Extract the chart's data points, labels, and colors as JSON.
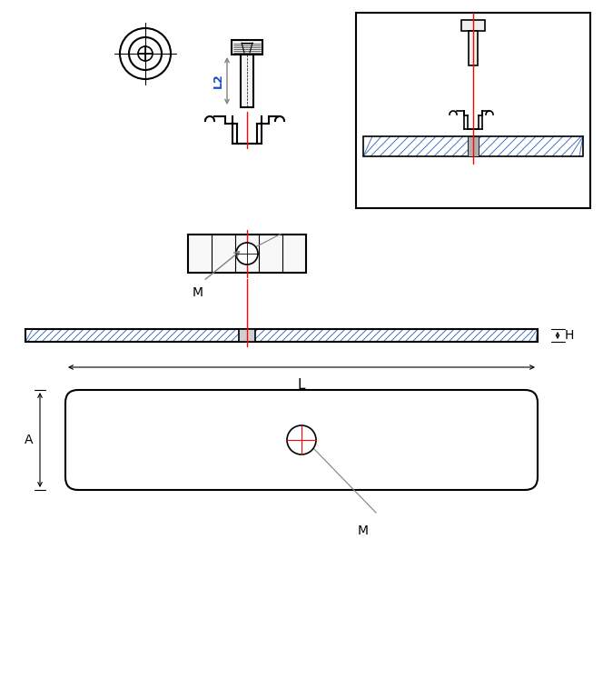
{
  "bg_color": "#ffffff",
  "line_color": "#000000",
  "red_line": "#ff0000",
  "blue_hatch_color": "#4472c4",
  "gray_color": "#808080",
  "label_L2": "L2",
  "label_L": "L",
  "label_H": "H",
  "label_A": "A",
  "label_M": "M",
  "font_size": 10
}
